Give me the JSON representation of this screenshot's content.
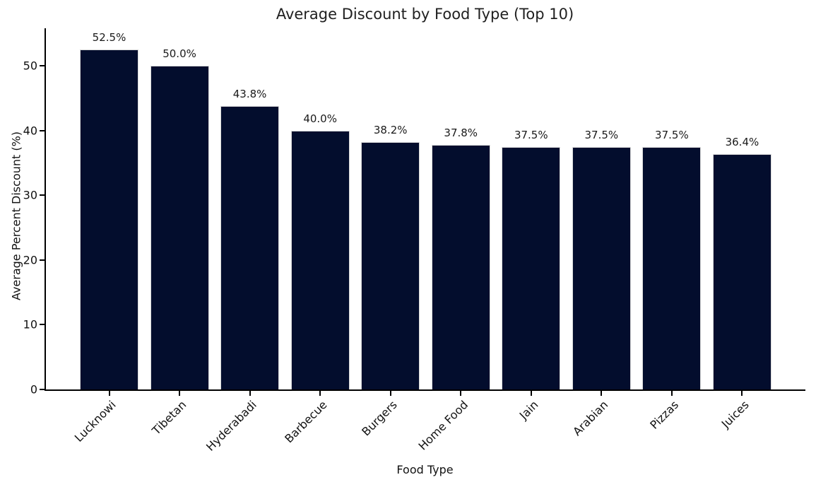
{
  "chart_data": {
    "type": "bar",
    "title": "Average Discount by Food Type (Top 10)",
    "xlabel": "Food Type",
    "ylabel": "Average Percent Discount (%)",
    "categories": [
      "Lucknowi",
      "Tibetan",
      "Hyderabadi",
      "Barbecue",
      "Burgers",
      "Home Food",
      "Jain",
      "Arabian",
      "Pizzas",
      "Juices"
    ],
    "values": [
      52.5,
      50.0,
      43.8,
      40.0,
      38.2,
      37.8,
      37.5,
      37.5,
      37.5,
      36.4
    ],
    "bar_labels": [
      "52.5%",
      "50.0%",
      "43.8%",
      "40.0%",
      "38.2%",
      "37.8%",
      "37.5%",
      "37.5%",
      "37.5%",
      "36.4%"
    ],
    "yticks": [
      0,
      10,
      20,
      30,
      40,
      50
    ],
    "ylim": [
      0,
      55.8
    ],
    "xtick_rotation": 45,
    "grid": false,
    "legend_position": "none",
    "bar_color": "#030d2d",
    "bar_edge_color": "#d9d9d9",
    "axis_color": "#000000",
    "text_color": "#111111",
    "background_color": "#ffffff"
  }
}
